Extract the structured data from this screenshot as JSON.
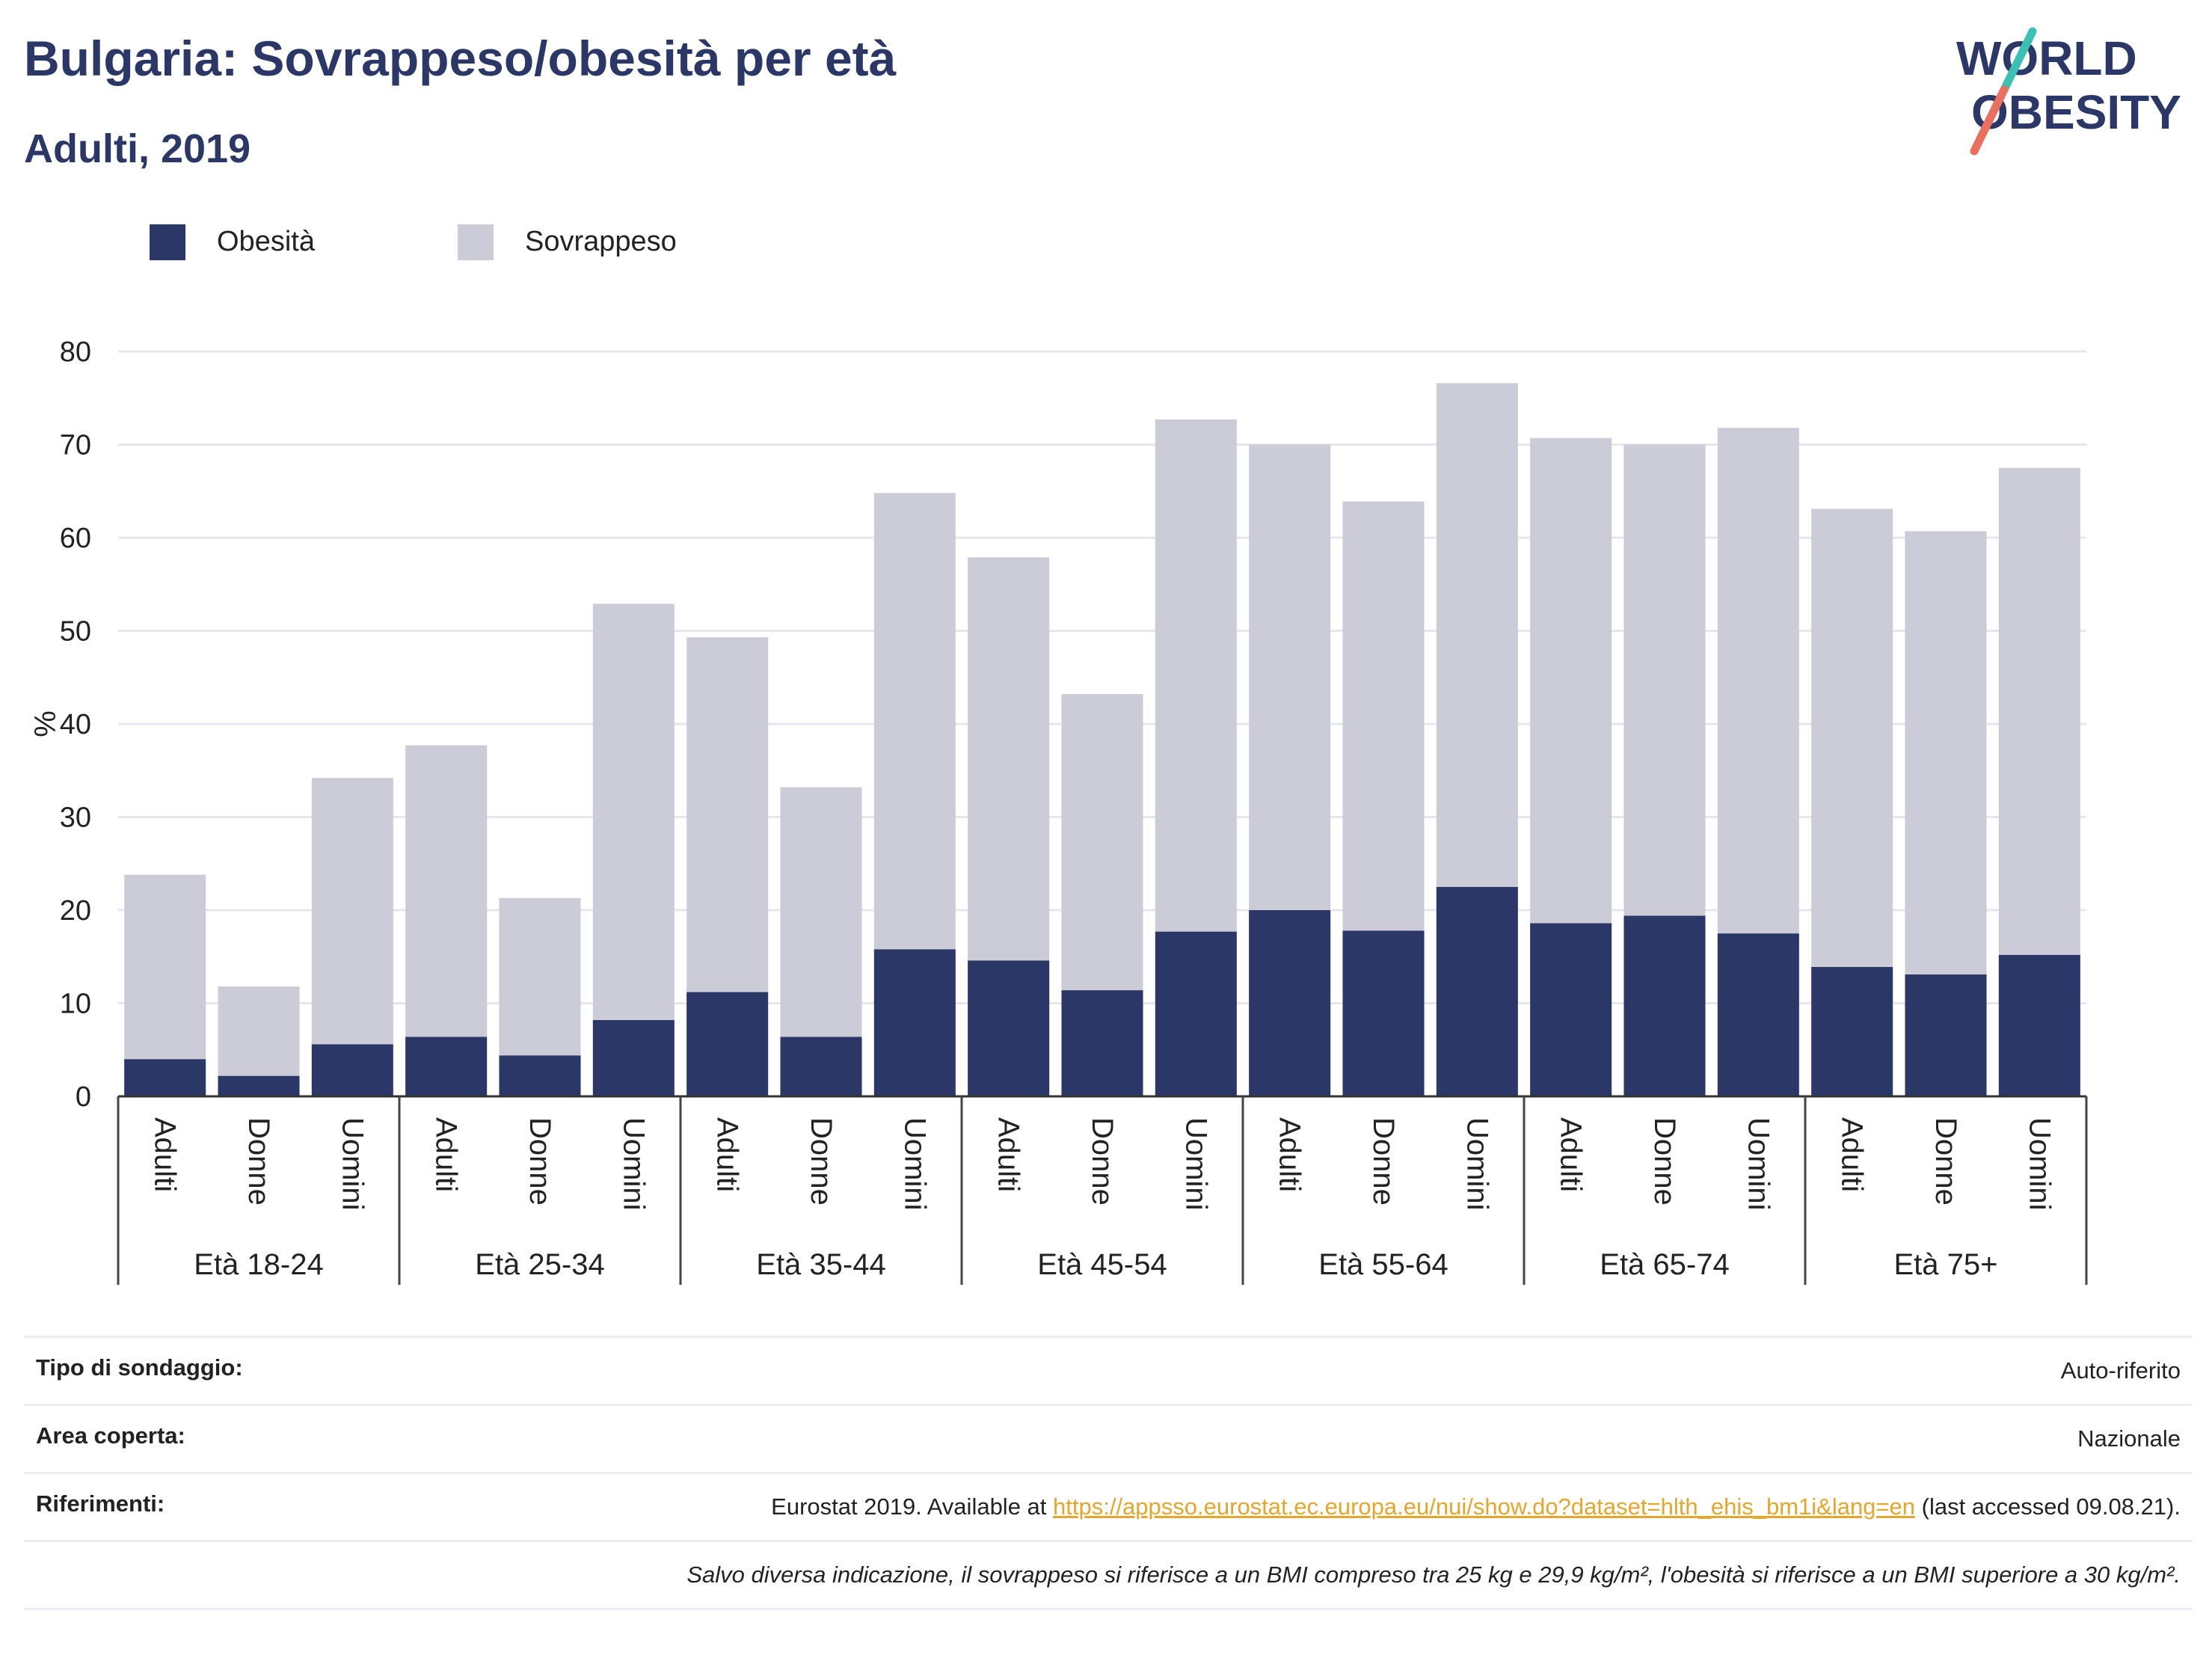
{
  "header": {
    "title": "Bulgaria: Sovrappeso/obesità per età",
    "subtitle": "Adulti, 2019"
  },
  "logo": {
    "line1": "WORLD",
    "line2": "OBESITY"
  },
  "chart_data": {
    "type": "bar",
    "stacked": true,
    "ylabel": "%",
    "ylim": [
      0,
      80
    ],
    "yticks": [
      0,
      10,
      20,
      30,
      40,
      50,
      60,
      70,
      80
    ],
    "grid": true,
    "legend_position": "top-left",
    "groups": [
      {
        "label": "Età 18-24",
        "categories": [
          "Adulti",
          "Donne",
          "Uomini"
        ]
      },
      {
        "label": "Età 25-34",
        "categories": [
          "Adulti",
          "Donne",
          "Uomini"
        ]
      },
      {
        "label": "Età 35-44",
        "categories": [
          "Adulti",
          "Donne",
          "Uomini"
        ]
      },
      {
        "label": "Età 45-54",
        "categories": [
          "Adulti",
          "Donne",
          "Uomini"
        ]
      },
      {
        "label": "Età 55-64",
        "categories": [
          "Adulti",
          "Donne",
          "Uomini"
        ]
      },
      {
        "label": "Età 65-74",
        "categories": [
          "Adulti",
          "Donne",
          "Uomini"
        ]
      },
      {
        "label": "Età 75+",
        "categories": [
          "Adulti",
          "Donne",
          "Uomini"
        ]
      }
    ],
    "series": [
      {
        "name": "Obesità",
        "color": "#2b3766",
        "values": [
          4.0,
          2.2,
          5.6,
          6.4,
          4.4,
          8.2,
          11.2,
          6.4,
          15.8,
          14.6,
          11.4,
          17.7,
          20.0,
          17.8,
          22.5,
          18.6,
          19.4,
          17.5,
          13.9,
          13.1,
          15.2
        ]
      },
      {
        "name": "Sovrappeso",
        "color": "#cbccd8",
        "values": [
          19.8,
          9.6,
          28.6,
          31.3,
          16.9,
          44.7,
          38.1,
          26.8,
          49.0,
          43.3,
          31.8,
          55.0,
          50.0,
          46.1,
          54.1,
          52.1,
          50.6,
          54.3,
          49.2,
          47.6,
          52.3
        ]
      }
    ]
  },
  "info": {
    "survey_label": "Tipo di sondaggio:",
    "survey_value": "Auto-riferito",
    "area_label": "Area coperta:",
    "area_value": "Nazionale",
    "refs_label": "Riferimenti:",
    "refs_prefix": "Eurostat 2019. Available at ",
    "refs_link": "https://appsso.eurostat.ec.europa.eu/nui/show.do?dataset=hlth_ehis_bm1i&lang=en",
    "refs_suffix": " (last accessed 09.08.21).",
    "note": "Salvo diversa indicazione, il sovrappeso si riferisce a un BMI compreso tra 25 kg e 29,9 kg/m², l'obesità si riferisce a un BMI superiore a 30 kg/m²."
  }
}
